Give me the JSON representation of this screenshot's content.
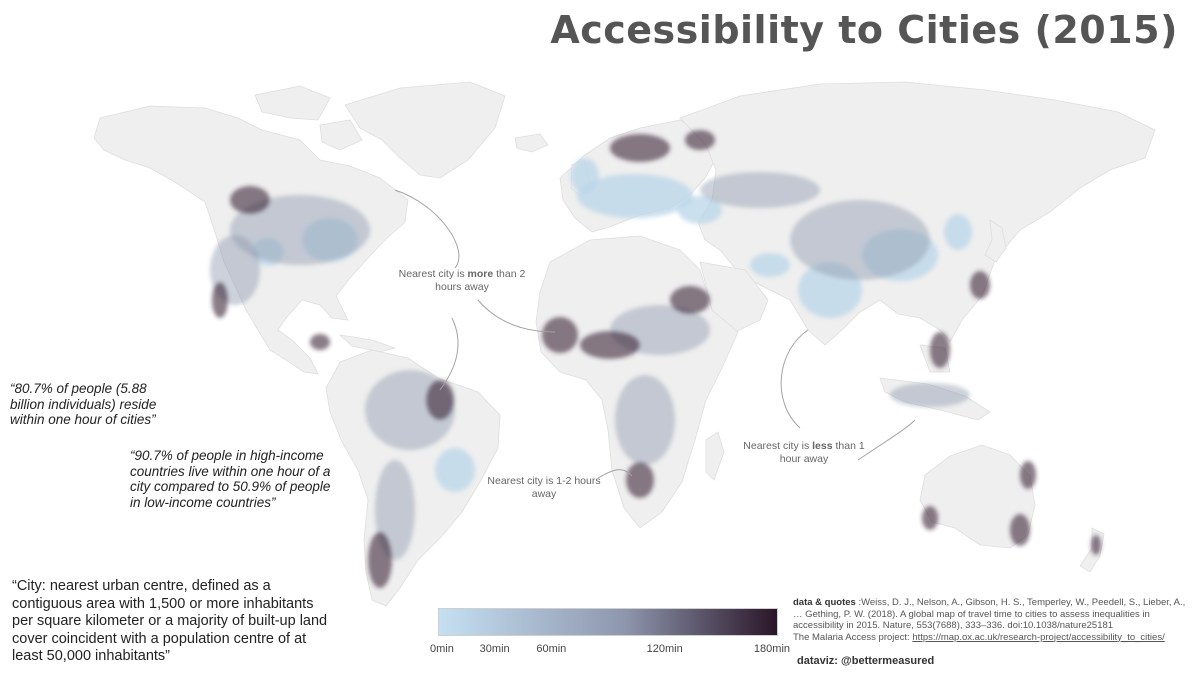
{
  "title": "Accessibility to Cities (2015)",
  "annotations": {
    "more": {
      "prefix": "Nearest city is ",
      "bold": "more",
      "suffix": " than 2 hours away"
    },
    "between": "Nearest city is 1-2 hours away",
    "less": {
      "prefix": "Nearest city is ",
      "bold": "less",
      "suffix": " than 1 hour away"
    }
  },
  "quotes": {
    "q1": "“80.7% of people (5.88 billion individuals) reside within one hour of cities”",
    "q2": "“90.7% of people in high-income countries live within one hour of a city compared to 50.9% of people in low-income countries”"
  },
  "definition": "“City: nearest urban centre, defined as a contiguous area with 1,500 or more inhabitants per square kilometer or a majority of built-up land cover coincident with a population centre of at least 50,000 inhabitants”",
  "legend": {
    "colors": {
      "start": "#c5e0f2",
      "mid": "#8e96ad",
      "end": "#2a1528"
    },
    "ticks": [
      {
        "label": "0min",
        "minutes": 0
      },
      {
        "label": "30min",
        "minutes": 30
      },
      {
        "label": "60min",
        "minutes": 60
      },
      {
        "label": "120min",
        "minutes": 120
      },
      {
        "label": "180min",
        "minutes": 180
      }
    ],
    "max_minutes": 180
  },
  "sources": {
    "label": "data & quotes",
    "citation": ":Weiss, D. J., Nelson, A., Gibson, H. S., Temperley, W., Peedell, S., Lieber, A., … Gething, P. W. (2018). A global map of travel time to cities to assess inequalities in accessibility in 2015. Nature, 553(7688), 333–336. doi:10.1038/nature25181",
    "project_prefix": "The Malaria Access project: ",
    "project_url": "https://map.ox.ac.uk/research-project/accessibility_to_cities/"
  },
  "credit": "dataviz: @bettermeasured",
  "colors": {
    "land": "#efefef",
    "land_stroke": "#dedede",
    "access_light": "#b9d6e8",
    "access_mid": "#8f9ab0",
    "access_dark": "#3a2538",
    "annotation_line": "#a3a3a3"
  }
}
